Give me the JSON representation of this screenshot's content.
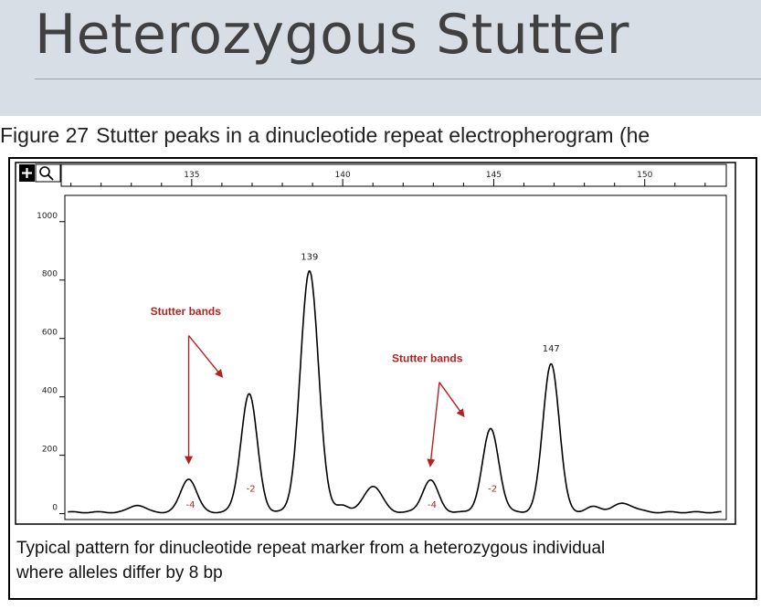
{
  "slide": {
    "title": "Heterozygous Stutter"
  },
  "figure": {
    "label": "Figure 27",
    "caption": "Stutter peaks in a dinucleotide repeat electropherogram (he",
    "note_line1": "Typical pattern for dinucleotide repeat marker from a heterozygous individual",
    "note_line2": "where alleles differ by 8 bp"
  },
  "toolbar": {
    "zoom_icon": "plus-icon",
    "magnifier_icon": "magnifier-icon"
  },
  "colors": {
    "trace": "#000000",
    "annotation": "#b22222",
    "frame": "#000000"
  },
  "chart_data": {
    "type": "line",
    "title": "",
    "xlabel": "",
    "ylabel": "",
    "x_ticks": [
      135,
      140,
      145,
      150
    ],
    "x_tick_labels": [
      "135",
      "140",
      "145",
      "150"
    ],
    "xlim": [
      130.8,
      152.7
    ],
    "y_ticks": [
      0,
      200,
      400,
      600,
      800,
      1000
    ],
    "y_tick_labels": [
      "0",
      "200",
      "400",
      "600",
      "800",
      "1000"
    ],
    "ylim": [
      -20,
      1090
    ],
    "grid": false,
    "baseline": 5,
    "peaks": [
      {
        "x": 133.2,
        "height": 25,
        "width": 0.25
      },
      {
        "x": 134.9,
        "height": 115,
        "width": 0.26
      },
      {
        "x": 136.9,
        "height": 405,
        "width": 0.27
      },
      {
        "x": 138.9,
        "height": 825,
        "width": 0.3
      },
      {
        "x": 140.0,
        "height": 25,
        "width": 0.2
      },
      {
        "x": 141.0,
        "height": 90,
        "width": 0.3
      },
      {
        "x": 142.9,
        "height": 110,
        "width": 0.26
      },
      {
        "x": 144.9,
        "height": 285,
        "width": 0.27
      },
      {
        "x": 146.9,
        "height": 510,
        "width": 0.27
      },
      {
        "x": 148.3,
        "height": 18,
        "width": 0.25
      },
      {
        "x": 149.3,
        "height": 30,
        "width": 0.35
      }
    ],
    "peak_labels": [
      {
        "text": "139",
        "x": 138.9,
        "y": 870
      },
      {
        "text": "147",
        "x": 146.9,
        "y": 555
      }
    ],
    "stutter_labels": [
      {
        "text": "-4",
        "x": 134.9,
        "y": 20
      },
      {
        "text": "-2",
        "x": 136.9,
        "y": 75
      },
      {
        "text": "-4",
        "x": 142.9,
        "y": 20
      },
      {
        "text": "-2",
        "x": 144.9,
        "y": 75
      }
    ],
    "annotations": [
      {
        "text": "Stutter bands",
        "x": 134.8,
        "y": 680,
        "arrows": [
          {
            "from": [
              134.9,
              610
            ],
            "to": [
              134.9,
              175
            ]
          },
          {
            "from": [
              134.9,
              610
            ],
            "to": [
              136.0,
              470
            ]
          }
        ]
      },
      {
        "text": "Stutter bands",
        "x": 142.8,
        "y": 520,
        "arrows": [
          {
            "from": [
              143.2,
              450
            ],
            "to": [
              142.9,
              165
            ]
          },
          {
            "from": [
              143.2,
              450
            ],
            "to": [
              144.0,
              335
            ]
          }
        ]
      }
    ]
  }
}
